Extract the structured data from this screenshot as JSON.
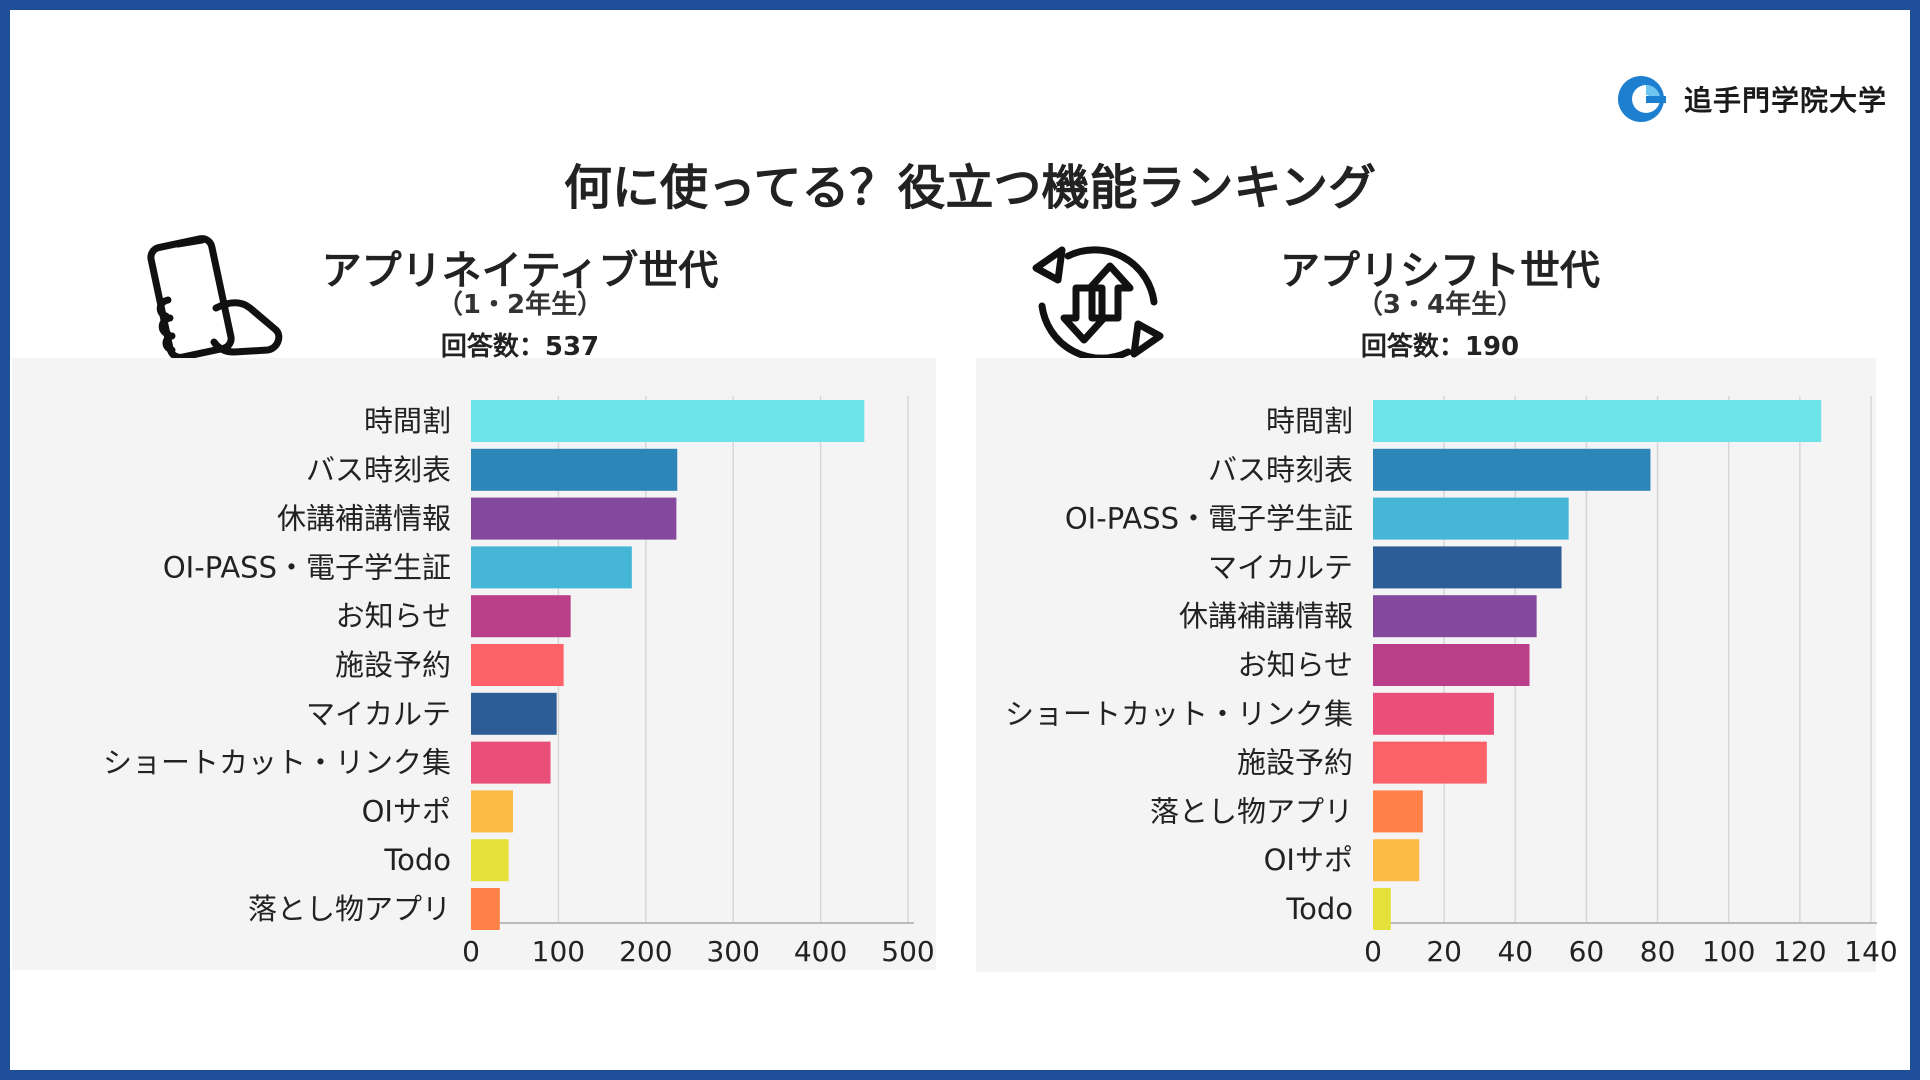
{
  "logo": {
    "name": "追手門学院大学",
    "colors": [
      "#1d7fd0",
      "#6ec6f0"
    ]
  },
  "page_title": "何に使ってる？役立つ機能ランキング",
  "left": {
    "title": "アプリネイティブ世代",
    "subtitle": "（1・2年生）",
    "count_label": "回答数：537",
    "icon": "smartphone-hand-icon"
  },
  "right": {
    "title": "アプリシフト世代",
    "subtitle": "（3・4年生）",
    "count_label": "回答数：190",
    "icon": "transfer-arrows-cycle-icon"
  },
  "chart_data": [
    {
      "type": "bar",
      "orientation": "horizontal",
      "title": "アプリネイティブ世代",
      "categories": [
        "時間割",
        "バス時刻表",
        "休講補講情報",
        "OI-PASS・電子学生証",
        "お知らせ",
        "施設予約",
        "マイカルテ",
        "ショートカット・リンク集",
        "OIサポ",
        "Todo",
        "落とし物アプリ"
      ],
      "values": [
        450,
        236,
        235,
        184,
        114,
        106,
        98,
        91,
        48,
        43,
        33
      ],
      "colors": [
        "#6be3e8",
        "#2e86b8",
        "#84489c",
        "#45b6d6",
        "#bb3e8a",
        "#fd626a",
        "#2d5d96",
        "#ea4f7a",
        "#fdba45",
        "#e5e13a",
        "#ff8149"
      ],
      "xlim": [
        0,
        500
      ],
      "xticks": [
        "0",
        "100",
        "200",
        "300",
        "400",
        "500"
      ],
      "grid": true
    },
    {
      "type": "bar",
      "orientation": "horizontal",
      "title": "アプリシフト世代",
      "categories": [
        "時間割",
        "バス時刻表",
        "OI-PASS・電子学生証",
        "マイカルテ",
        "休講補講情報",
        "お知らせ",
        "ショートカット・リンク集",
        "施設予約",
        "落とし物アプリ",
        "OIサポ",
        "Todo"
      ],
      "values": [
        126,
        78,
        55,
        53,
        46,
        44,
        34,
        32,
        14,
        13,
        5
      ],
      "colors": [
        "#6be3e8",
        "#2e86b8",
        "#45b6d6",
        "#2d5d96",
        "#84489c",
        "#bb3e8a",
        "#ea4f7a",
        "#fd626a",
        "#ff8149",
        "#fdba45",
        "#e5e13a"
      ],
      "xlim": [
        0,
        140
      ],
      "xticks": [
        "0",
        "20",
        "40",
        "60",
        "80",
        "100",
        "120",
        "140"
      ],
      "grid": true
    }
  ]
}
